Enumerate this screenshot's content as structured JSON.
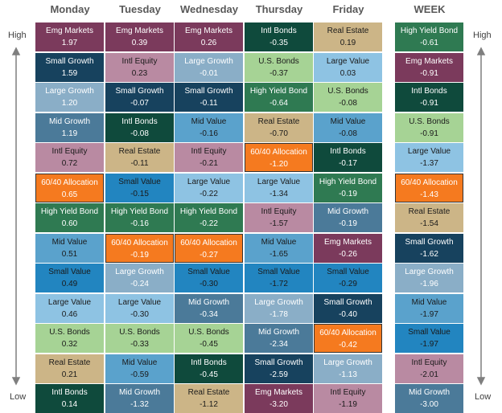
{
  "side_labels": {
    "high": "High",
    "low": "Low"
  },
  "styles": {
    "Emg Markets": [
      "#7b3a5c",
      "#ffffff"
    ],
    "Small Growth": [
      "#17425e",
      "#ffffff"
    ],
    "Large Growth": [
      "#8aaec7",
      "#ffffff"
    ],
    "Mid Growth": [
      "#4b7a99",
      "#ffffff"
    ],
    "Intl Equity": [
      "#b98aa2",
      "#1a1a1a"
    ],
    "60/40 Allocation": [
      "#f57a1f",
      "#ffffff"
    ],
    "High Yield Bond": [
      "#2f7a52",
      "#ffffff"
    ],
    "Mid Value": [
      "#5aa2cc",
      "#1a1a1a"
    ],
    "Small Value": [
      "#2285c0",
      "#1a1a1a"
    ],
    "Large Value": [
      "#8ec3e3",
      "#1a1a1a"
    ],
    "U.S. Bonds": [
      "#a6d395",
      "#1a1a1a"
    ],
    "Real Estate": [
      "#ccb587",
      "#1a1a1a"
    ],
    "Intl Bonds": [
      "#0f4a3c",
      "#ffffff"
    ]
  },
  "columns": [
    {
      "header": "Monday",
      "cells": [
        [
          "Emg Markets",
          "1.97"
        ],
        [
          "Small Growth",
          "1.59"
        ],
        [
          "Large Growth",
          "1.20"
        ],
        [
          "Mid Growth",
          "1.19"
        ],
        [
          "Intl Equity",
          "0.72"
        ],
        [
          "60/40 Allocation",
          "0.65"
        ],
        [
          "High Yield Bond",
          "0.60"
        ],
        [
          "Mid Value",
          "0.51"
        ],
        [
          "Small Value",
          "0.49"
        ],
        [
          "Large Value",
          "0.46"
        ],
        [
          "U.S. Bonds",
          "0.32"
        ],
        [
          "Real Estate",
          "0.21"
        ],
        [
          "Intl Bonds",
          "0.14"
        ]
      ]
    },
    {
      "header": "Tuesday",
      "cells": [
        [
          "Emg Markets",
          "0.39"
        ],
        [
          "Intl Equity",
          "0.23"
        ],
        [
          "Small Growth",
          "-0.07"
        ],
        [
          "Intl Bonds",
          "-0.08"
        ],
        [
          "Real Estate",
          "-0.11"
        ],
        [
          "Small Value",
          "-0.15"
        ],
        [
          "High Yield Bond",
          "-0.16"
        ],
        [
          "60/40 Allocation",
          "-0.19"
        ],
        [
          "Large Growth",
          "-0.24"
        ],
        [
          "Large Value",
          "-0.30"
        ],
        [
          "U.S. Bonds",
          "-0.33"
        ],
        [
          "Mid Value",
          "-0.59"
        ],
        [
          "Mid Growth",
          "-1.32"
        ]
      ]
    },
    {
      "header": "Wednesday",
      "cells": [
        [
          "Emg Markets",
          "0.26"
        ],
        [
          "Large Growth",
          "-0.01"
        ],
        [
          "Small Growth",
          "-0.11"
        ],
        [
          "Mid Value",
          "-0.16"
        ],
        [
          "Intl Equity",
          "-0.21"
        ],
        [
          "Large Value",
          "-0.22"
        ],
        [
          "High Yield Bond",
          "-0.22"
        ],
        [
          "60/40 Allocation",
          "-0.27"
        ],
        [
          "Small Value",
          "-0.30"
        ],
        [
          "Mid Growth",
          "-0.34"
        ],
        [
          "U.S. Bonds",
          "-0.45"
        ],
        [
          "Intl Bonds",
          "-0.45"
        ],
        [
          "Real Estate",
          "-1.12"
        ]
      ]
    },
    {
      "header": "Thursday",
      "cells": [
        [
          "Intl Bonds",
          "-0.35"
        ],
        [
          "U.S. Bonds",
          "-0.37"
        ],
        [
          "High Yield Bond",
          "-0.64"
        ],
        [
          "Real Estate",
          "-0.70"
        ],
        [
          "60/40 Allocation",
          "-1.20"
        ],
        [
          "Large Value",
          "-1.34"
        ],
        [
          "Intl Equity",
          "-1.57"
        ],
        [
          "Mid Value",
          "-1.65"
        ],
        [
          "Small Value",
          "-1.72"
        ],
        [
          "Large Growth",
          "-1.78"
        ],
        [
          "Mid Growth",
          "-2.34"
        ],
        [
          "Small Growth",
          "-2.59"
        ],
        [
          "Emg Markets",
          "-3.20"
        ]
      ]
    },
    {
      "header": "Friday",
      "cells": [
        [
          "Real Estate",
          "0.19"
        ],
        [
          "Large Value",
          "0.03"
        ],
        [
          "U.S. Bonds",
          "-0.08"
        ],
        [
          "Mid Value",
          "-0.08"
        ],
        [
          "Intl Bonds",
          "-0.17"
        ],
        [
          "High Yield Bond",
          "-0.19"
        ],
        [
          "Mid Growth",
          "-0.19"
        ],
        [
          "Emg Markets",
          "-0.26"
        ],
        [
          "Small Value",
          "-0.29"
        ],
        [
          "Small Growth",
          "-0.40"
        ],
        [
          "60/40 Allocation",
          "-0.42"
        ],
        [
          "Large Growth",
          "-1.13"
        ],
        [
          "Intl Equity",
          "-1.19"
        ]
      ]
    },
    {
      "header": "WEEK",
      "cells": [
        [
          "High Yield Bond",
          "-0.61"
        ],
        [
          "Emg Markets",
          "-0.91"
        ],
        [
          "Intl Bonds",
          "-0.91"
        ],
        [
          "U.S. Bonds",
          "-0.91"
        ],
        [
          "Large Value",
          "-1.37"
        ],
        [
          "60/40 Allocation",
          "-1.43"
        ],
        [
          "Real Estate",
          "-1.54"
        ],
        [
          "Small Growth",
          "-1.62"
        ],
        [
          "Large Growth",
          "-1.96"
        ],
        [
          "Mid Value",
          "-1.97"
        ],
        [
          "Small Value",
          "-1.97"
        ],
        [
          "Intl Equity",
          "-2.01"
        ],
        [
          "Mid Growth",
          "-3.00"
        ]
      ]
    }
  ]
}
